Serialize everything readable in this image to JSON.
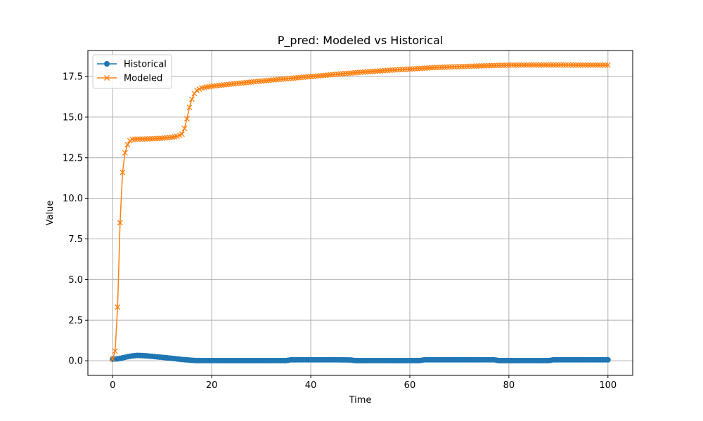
{
  "chart_data": {
    "type": "line",
    "title": "P_pred: Modeled vs Historical",
    "xlabel": "Time",
    "ylabel": "Value",
    "xlim": [
      -5,
      105
    ],
    "ylim": [
      -0.9,
      19.1
    ],
    "xticks": [
      0,
      20,
      40,
      60,
      80,
      100
    ],
    "xtick_labels": [
      "0",
      "20",
      "40",
      "60",
      "80",
      "100"
    ],
    "yticks": [
      0,
      2.5,
      5,
      7.5,
      10,
      12.5,
      15,
      17.5
    ],
    "ytick_labels": [
      "0.0",
      "2.5",
      "5.0",
      "7.5",
      "10.0",
      "12.5",
      "15.0",
      "17.5"
    ],
    "grid": true,
    "legend_position": "upper-left",
    "sample_step": 0.5,
    "series": [
      {
        "name": "Historical",
        "color": "#1f77b4",
        "marker": "circle",
        "x": [
          0,
          1,
          2,
          3,
          4,
          5,
          6,
          7,
          8,
          9,
          10,
          12,
          14,
          16,
          17,
          18,
          20,
          25,
          30,
          35,
          36,
          40,
          45,
          48,
          49,
          50,
          55,
          60,
          62,
          63,
          65,
          70,
          75,
          77,
          78,
          80,
          85,
          88,
          89,
          90,
          95,
          100
        ],
        "y": [
          0.1,
          0.12,
          0.18,
          0.25,
          0.3,
          0.33,
          0.32,
          0.3,
          0.27,
          0.24,
          0.21,
          0.15,
          0.08,
          0.03,
          0.01,
          0.01,
          0.01,
          0.01,
          0.01,
          0.01,
          0.06,
          0.06,
          0.06,
          0.05,
          0.01,
          0.01,
          0.01,
          0.01,
          0.01,
          0.06,
          0.06,
          0.06,
          0.06,
          0.06,
          0.01,
          0.01,
          0.01,
          0.01,
          0.06,
          0.06,
          0.06,
          0.06
        ]
      },
      {
        "name": "Modeled",
        "color": "#ff7f0e",
        "marker": "x",
        "x": [
          0,
          0.5,
          1,
          1.5,
          2,
          2.5,
          3,
          3.5,
          4,
          5,
          6,
          8,
          10,
          12,
          13,
          14,
          14.5,
          15,
          15.5,
          16,
          16.5,
          17,
          18,
          20,
          25,
          30,
          35,
          40,
          45,
          50,
          55,
          60,
          65,
          70,
          75,
          80,
          85,
          90,
          95,
          100
        ],
        "y": [
          0.1,
          0.6,
          3.3,
          8.5,
          11.6,
          12.8,
          13.3,
          13.55,
          13.63,
          13.65,
          13.65,
          13.67,
          13.7,
          13.76,
          13.82,
          13.95,
          14.3,
          14.9,
          15.6,
          16.1,
          16.45,
          16.65,
          16.8,
          16.9,
          17.07,
          17.22,
          17.36,
          17.5,
          17.63,
          17.76,
          17.87,
          17.96,
          18.05,
          18.11,
          18.16,
          18.2,
          18.21,
          18.21,
          18.2,
          18.2
        ]
      }
    ]
  }
}
